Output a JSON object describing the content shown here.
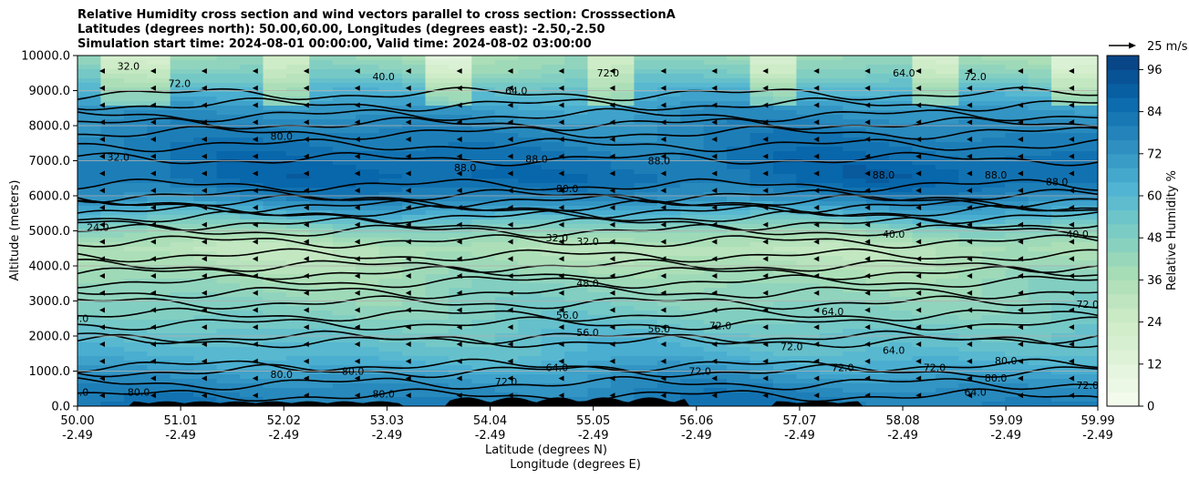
{
  "chart_data": {
    "type": "contourf",
    "title_lines": [
      "Relative Humidity cross section and wind vectors parallel to cross section: CrosssectionA",
      "Latitudes (degrees north): 50.00,60.00, Longitudes (degrees east): -2.50,-2.50",
      "Simulation start time: 2024-08-01 00:00:00, Valid time: 2024-08-02 03:00:00"
    ],
    "ylabel": "Altitude (meters)",
    "xlabel_lines": [
      "Latitude (degrees N)",
      "Longitude (degrees E)"
    ],
    "ylim": [
      0,
      10000
    ],
    "xlim": [
      50.0,
      59.99
    ],
    "y_ticks": [
      "0.0",
      "1000.0",
      "2000.0",
      "3000.0",
      "4000.0",
      "5000.0",
      "6000.0",
      "7000.0",
      "8000.0",
      "9000.0",
      "10000.0"
    ],
    "x_ticks": [
      {
        "lat": "50.00",
        "lon": "-2.49"
      },
      {
        "lat": "51.01",
        "lon": "-2.49"
      },
      {
        "lat": "52.02",
        "lon": "-2.49"
      },
      {
        "lat": "53.03",
        "lon": "-2.49"
      },
      {
        "lat": "54.04",
        "lon": "-2.49"
      },
      {
        "lat": "55.05",
        "lon": "-2.49"
      },
      {
        "lat": "56.06",
        "lon": "-2.49"
      },
      {
        "lat": "57.07",
        "lon": "-2.49"
      },
      {
        "lat": "58.08",
        "lon": "-2.49"
      },
      {
        "lat": "59.09",
        "lon": "-2.49"
      },
      {
        "lat": "59.99",
        "lon": "-2.49"
      }
    ],
    "colorbar": {
      "label": "Relative Humidity %",
      "ticks": [
        "0",
        "12",
        "24",
        "36",
        "48",
        "60",
        "72",
        "84",
        "96"
      ],
      "range": [
        0,
        100
      ],
      "colormap": "GnBu"
    },
    "quiver_key": "25 m/s",
    "contour_labels": [
      "24.0",
      "32.0",
      "40.0",
      "48.0",
      "56.0",
      "64.0",
      "72.0",
      "80.0",
      "88.0"
    ],
    "rh_profile": [
      {
        "alt": 0,
        "rh": 80
      },
      {
        "alt": 500,
        "rh": 76
      },
      {
        "alt": 1000,
        "rh": 68
      },
      {
        "alt": 1500,
        "rh": 60
      },
      {
        "alt": 2000,
        "rh": 56
      },
      {
        "alt": 2500,
        "rh": 50
      },
      {
        "alt": 3000,
        "rh": 46
      },
      {
        "alt": 3500,
        "rh": 42
      },
      {
        "alt": 4000,
        "rh": 36
      },
      {
        "alt": 4500,
        "rh": 32
      },
      {
        "alt": 5000,
        "rh": 44
      },
      {
        "alt": 5500,
        "rh": 62
      },
      {
        "alt": 6000,
        "rh": 78
      },
      {
        "alt": 6500,
        "rh": 86
      },
      {
        "alt": 7000,
        "rh": 84
      },
      {
        "alt": 7500,
        "rh": 80
      },
      {
        "alt": 8000,
        "rh": 76
      },
      {
        "alt": 8500,
        "rh": 70
      },
      {
        "alt": 9000,
        "rh": 60
      },
      {
        "alt": 9500,
        "rh": 48
      },
      {
        "alt": 10000,
        "rh": 40
      }
    ],
    "grid": "horizontal",
    "terrain_color": "#000000"
  }
}
